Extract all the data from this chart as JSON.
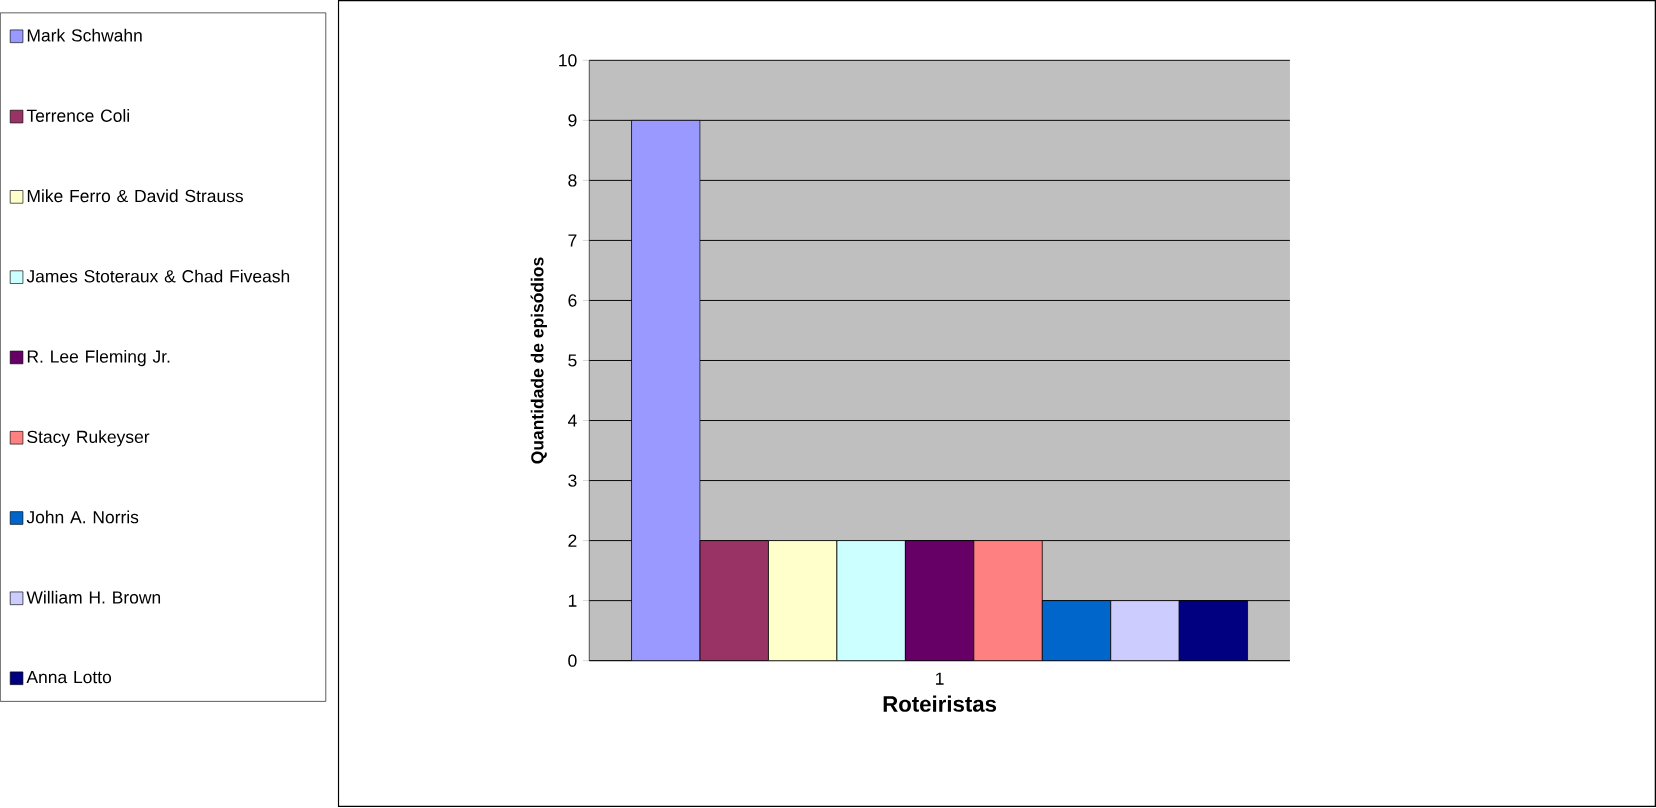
{
  "chart_data": {
    "type": "bar",
    "categories": [
      "1"
    ],
    "xlabel": "Roteiristas",
    "ylabel": "Quantidade de episódios",
    "ylim": [
      0,
      10
    ],
    "yticks": [
      0,
      1,
      2,
      3,
      4,
      5,
      6,
      7,
      8,
      9,
      10
    ],
    "grid": "y",
    "legend": "left",
    "series": [
      {
        "name": "Mark Schwahn",
        "color": "#9999ff",
        "values": [
          9
        ]
      },
      {
        "name": "Terrence Coli",
        "color": "#993366",
        "values": [
          2
        ]
      },
      {
        "name": "Mike Ferro & David Strauss",
        "color": "#ffffcc",
        "values": [
          2
        ]
      },
      {
        "name": "James Stoteraux & Chad Fiveash",
        "color": "#ccffff",
        "values": [
          2
        ]
      },
      {
        "name": "R. Lee Fleming Jr.",
        "color": "#660066",
        "values": [
          2
        ]
      },
      {
        "name": "Stacy Rukeyser",
        "color": "#ff8080",
        "values": [
          2
        ]
      },
      {
        "name": "John A. Norris",
        "color": "#0066cc",
        "values": [
          1
        ]
      },
      {
        "name": "William H. Brown",
        "color": "#ccccff",
        "values": [
          1
        ]
      },
      {
        "name": "Anna Lotto",
        "color": "#000080",
        "values": [
          1
        ]
      }
    ]
  }
}
